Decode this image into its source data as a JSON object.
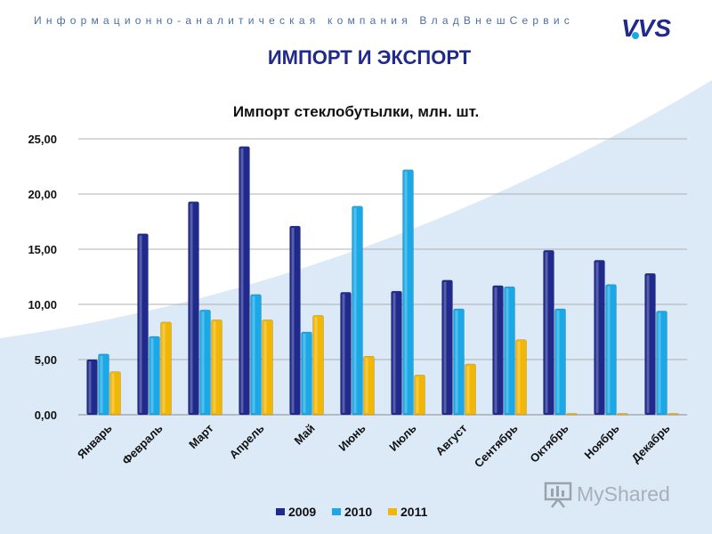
{
  "header": {
    "company": "Информационно-аналитическая компания ВладВнешСервис",
    "logo_text": "VVS",
    "page_title": "ИМПОРТ И ЭКСПОРТ"
  },
  "watermark": {
    "text": "MyShared"
  },
  "colors": {
    "2009": "#1f2a8c",
    "2010": "#1aa8e6",
    "2011": "#f2b705",
    "title": "#1f2a8c",
    "background_curve": "#dce9f7"
  },
  "chart_data": {
    "type": "bar",
    "title": "Импорт стеклобутылки, млн. шт.",
    "categories": [
      "Январь",
      "Февраль",
      "Март",
      "Апрель",
      "Май",
      "Июнь",
      "Июль",
      "Август",
      "Сентябрь",
      "Октябрь",
      "Ноябрь",
      "Декабрь"
    ],
    "series": [
      {
        "name": "2009",
        "values": [
          5.0,
          16.4,
          19.3,
          24.3,
          17.1,
          11.1,
          11.2,
          12.2,
          11.7,
          14.9,
          14.0,
          12.8
        ]
      },
      {
        "name": "2010",
        "values": [
          5.5,
          7.1,
          9.5,
          10.9,
          7.5,
          18.9,
          22.2,
          9.6,
          11.6,
          9.6,
          11.8,
          9.4
        ]
      },
      {
        "name": "2011",
        "values": [
          3.9,
          8.4,
          8.6,
          8.6,
          9.0,
          5.3,
          3.6,
          4.6,
          6.8,
          0.0,
          0.0,
          0.0
        ]
      }
    ],
    "ylim": [
      0,
      25
    ],
    "yticks": [
      "0,00",
      "5,00",
      "10,00",
      "15,00",
      "20,00",
      "25,00"
    ],
    "grid": true,
    "legend_position": "bottom"
  }
}
